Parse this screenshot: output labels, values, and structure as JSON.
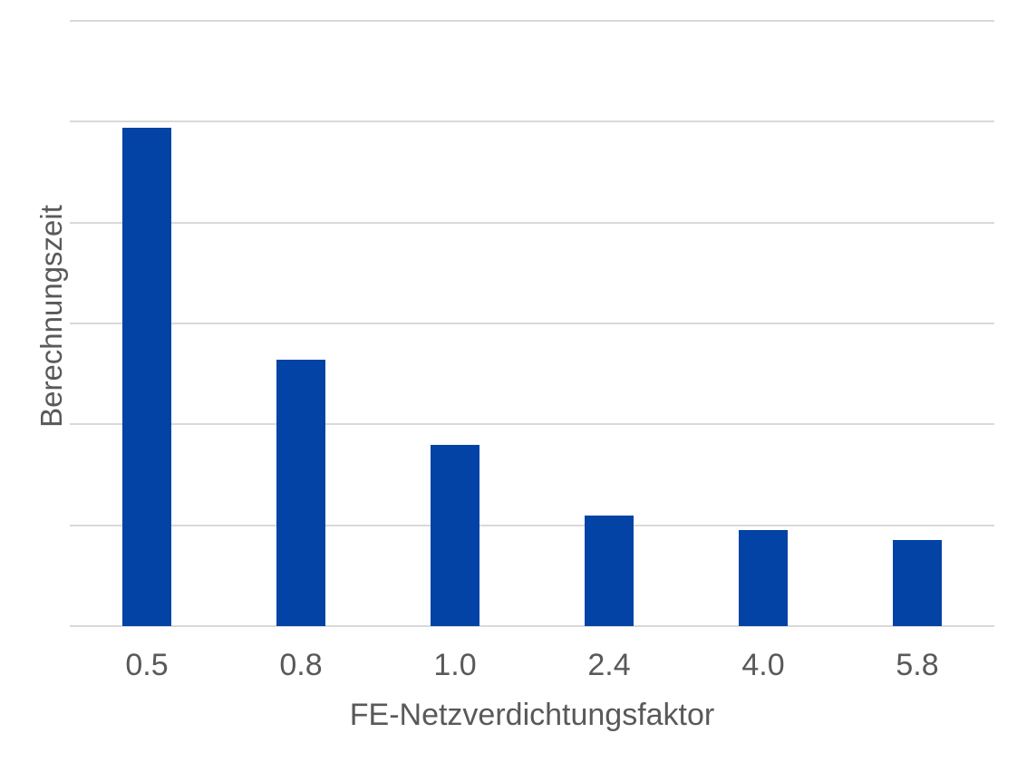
{
  "chart_data": {
    "type": "bar",
    "title": "",
    "categories": [
      "0.5",
      "0.8",
      "1.0",
      "2.4",
      "4.0",
      "5.8"
    ],
    "values": [
      4.94,
      2.64,
      1.8,
      1.1,
      0.95,
      0.85
    ],
    "xlabel": "FE-Netzverdichtungsfaktor",
    "ylabel": "Berechnungszeit",
    "ylim": [
      0,
      6
    ],
    "gridline_step": 1,
    "grid": true,
    "y_tick_labels_visible": false,
    "legend_position": "none",
    "bar_color": "#0243a5",
    "gridline_color": "#d9d9d9",
    "text_color": "#595959",
    "background_color": "#ffffff"
  }
}
